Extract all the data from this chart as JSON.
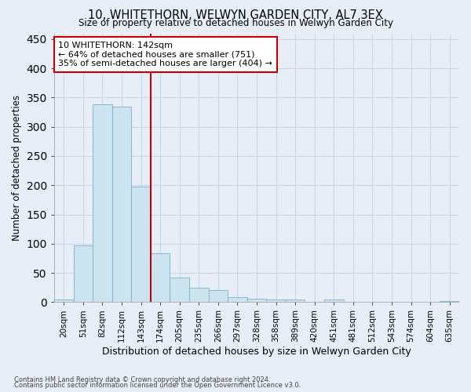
{
  "title": "10, WHITETHORN, WELWYN GARDEN CITY, AL7 3EX",
  "subtitle": "Size of property relative to detached houses in Welwyn Garden City",
  "xlabel": "Distribution of detached houses by size in Welwyn Garden City",
  "ylabel": "Number of detached properties",
  "footnote1": "Contains HM Land Registry data © Crown copyright and database right 2024.",
  "footnote2": "Contains public sector information licensed under the Open Government Licence v3.0.",
  "bar_labels": [
    "20sqm",
    "51sqm",
    "82sqm",
    "112sqm",
    "143sqm",
    "174sqm",
    "205sqm",
    "235sqm",
    "266sqm",
    "297sqm",
    "328sqm",
    "358sqm",
    "389sqm",
    "420sqm",
    "451sqm",
    "481sqm",
    "512sqm",
    "543sqm",
    "574sqm",
    "604sqm",
    "635sqm"
  ],
  "bar_values": [
    5,
    97,
    338,
    335,
    197,
    84,
    42,
    25,
    21,
    9,
    6,
    4,
    4,
    0,
    4,
    0,
    1,
    0,
    0,
    0,
    2
  ],
  "bar_color": "#cce4f0",
  "bar_edge_color": "#7ab0d0",
  "bg_color": "#e8eef8",
  "grid_color": "#c8d4e8",
  "vline_color": "#cc0000",
  "annotation_text": "10 WHITETHORN: 142sqm\n← 64% of detached houses are smaller (751)\n35% of semi-detached houses are larger (404) →",
  "annotation_box_color": "#ffffff",
  "annotation_box_edge": "#cc0000",
  "ylim": [
    0,
    460
  ],
  "yticks": [
    0,
    50,
    100,
    150,
    200,
    250,
    300,
    350,
    400,
    450
  ]
}
